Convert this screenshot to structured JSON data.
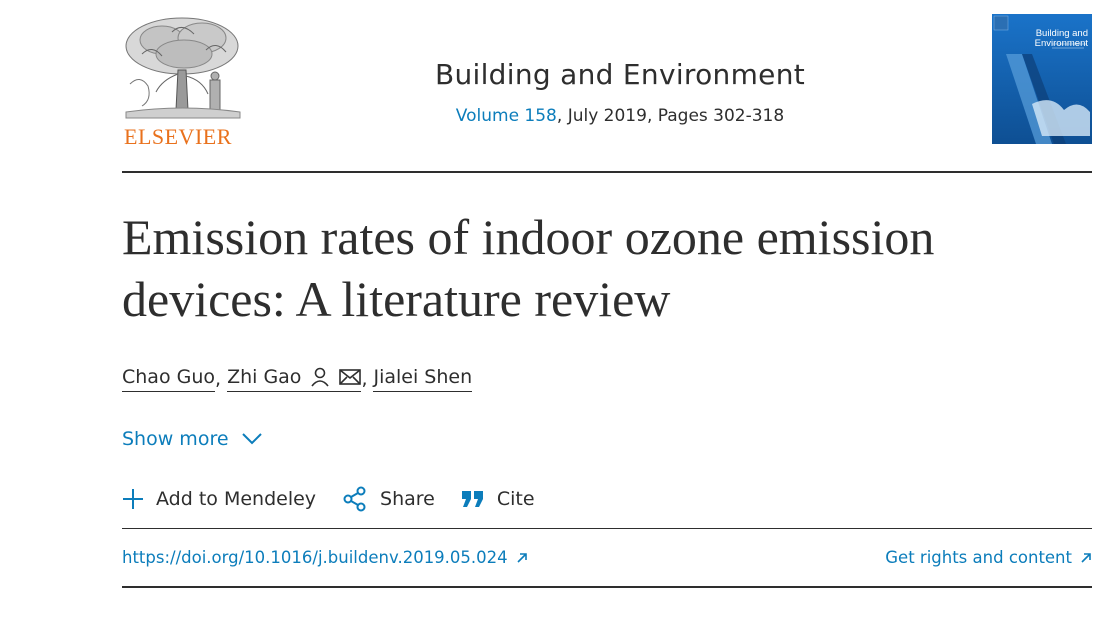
{
  "header": {
    "publisher_logo_text": "ELSEVIER",
    "journal_title": "Building and Environment",
    "volume_link": "Volume 158",
    "issue_info": ", July 2019, Pages 302-318",
    "cover": {
      "title": "Building and Environment",
      "bg_color": "#1560b5"
    }
  },
  "article": {
    "title_line1": "Emission rates of indoor ozone emission",
    "title_line2": "devices: A literature review"
  },
  "authors": [
    {
      "name": "Chao Guo"
    },
    {
      "name": "Zhi Gao"
    },
    {
      "name": "Jialei Shen"
    }
  ],
  "author_separator": ",",
  "show_more_label": "Show more",
  "actions": {
    "add_mendeley": "Add to Mendeley",
    "share": "Share",
    "cite": "Cite"
  },
  "links": {
    "doi": "https://doi.org/10.1016/j.buildenv.2019.05.024",
    "rights": "Get rights and content"
  },
  "colors": {
    "link": "#0c7dbb",
    "text": "#2e2e2e",
    "elsevier_orange": "#e9711c"
  }
}
